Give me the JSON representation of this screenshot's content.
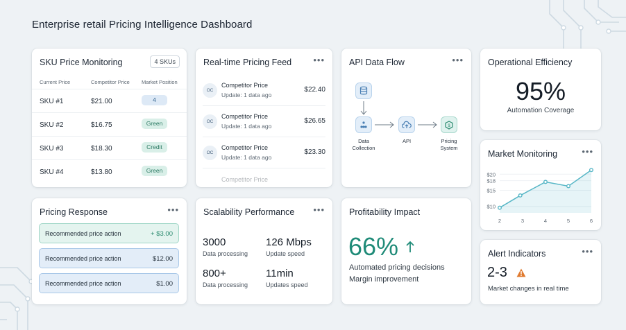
{
  "page": {
    "title": "Enterprise retail Pricing Intelligence Dashboard"
  },
  "menu_icon": "ellipsis",
  "sku": {
    "title": "SKU Price Monitoring",
    "badge": "4 SKUs",
    "columns": [
      "Current Price",
      "Competitor Price",
      "Market Position"
    ],
    "rows": [
      {
        "sku": "SKU #1",
        "price": "$21.00",
        "position": "4",
        "color": "#dde9f6"
      },
      {
        "sku": "SKU #2",
        "price": "$16.75",
        "position": "Green",
        "color": "#d9efe8"
      },
      {
        "sku": "SKU #3",
        "price": "$18.30",
        "position": "Credit",
        "color": "#d9efe8"
      },
      {
        "sku": "SKU #4",
        "price": "$13.80",
        "position": "Green",
        "color": "#d9efe8"
      }
    ]
  },
  "feed": {
    "title": "Real-time Pricing Feed",
    "items": [
      {
        "avatar": "OC",
        "name": "Competitor Price",
        "sub": "Update: 1 data ago",
        "price": "$22.40"
      },
      {
        "avatar": "OC",
        "name": "Competitor Price",
        "sub": "Update: 1 data ago",
        "price": "$26.65"
      },
      {
        "avatar": "OC",
        "name": "Competitor Price",
        "sub": "Update: 1 data ago",
        "price": "$23.30"
      },
      {
        "avatar": "",
        "name": "Competitor Price",
        "sub": "",
        "price": ""
      }
    ]
  },
  "api": {
    "title": "API Data Flow",
    "nodes": [
      {
        "label": "Data Collection",
        "icon": "database-icon"
      },
      {
        "label": "API",
        "icon": "cloud-upload-icon"
      },
      {
        "label": "Pricing System",
        "icon": "system-icon"
      }
    ]
  },
  "ops": {
    "title": "Operational Efficiency",
    "value": "95%",
    "label": "Automation Coverage"
  },
  "market": {
    "title": "Market Monitoring",
    "accent": "#56b6c6"
  },
  "chart_data": {
    "type": "area",
    "x": [
      2,
      2.9,
      4,
      5,
      6
    ],
    "values": [
      9.6,
      13.4,
      17.6,
      16.3,
      21.3
    ],
    "xticks": [
      "2",
      "3",
      "4",
      "5",
      "6"
    ],
    "yticks": [
      "$20",
      "$18",
      "$15",
      "$10"
    ],
    "ytick_values": [
      20,
      18,
      15,
      10
    ],
    "xlim": [
      2,
      6
    ],
    "ylim": [
      8,
      22
    ]
  },
  "response": {
    "title": "Pricing Response",
    "items": [
      {
        "label": "Recommended price action",
        "value": "+ $3.00",
        "bg": "#e4f4ef",
        "border": "#9fd6c6",
        "valueColor": "#2a8a6e"
      },
      {
        "label": "Recommended price action",
        "value": "$12.00",
        "bg": "#e3edf8",
        "border": "#a9c8e8",
        "valueColor": "#24303b"
      },
      {
        "label": "Recommended price action",
        "value": "$1.00",
        "bg": "#e3edf8",
        "border": "#a9c8e8",
        "valueColor": "#24303b"
      }
    ]
  },
  "scale": {
    "title": "Scalability Performance",
    "metrics": [
      {
        "value": "3000",
        "label": "Data processing"
      },
      {
        "value": "126 Mbps",
        "label": "Update speed"
      },
      {
        "value": "800+",
        "label": "Data processing"
      },
      {
        "value": "11min",
        "label": "Updates speed"
      }
    ]
  },
  "profit": {
    "title": "Profitability Impact",
    "value": "66%",
    "line1": "Automated pricing decisions",
    "line2": "Margin improvement",
    "color": "#1f8b78"
  },
  "alert": {
    "title": "Alert Indicators",
    "value": "2-3",
    "label": "Market changes in real time",
    "icon": "warning-icon",
    "color": "#e07a2f"
  }
}
